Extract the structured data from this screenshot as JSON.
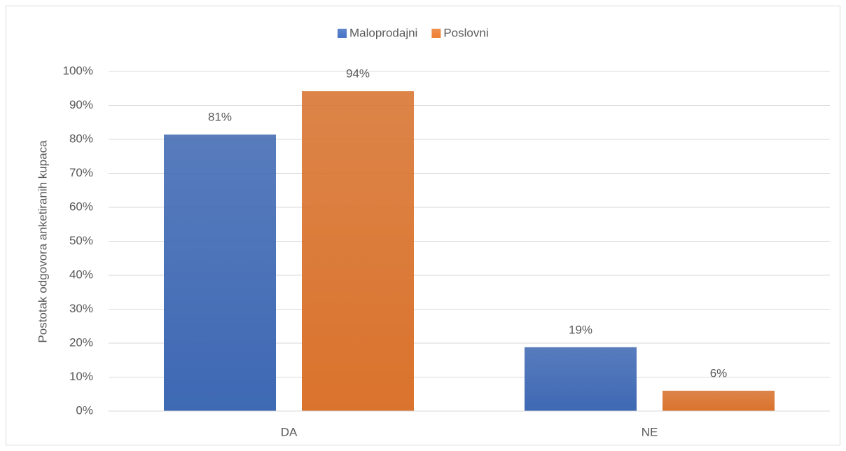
{
  "chart_data": {
    "type": "bar",
    "y_label": "Postotak odgovora anketiranih kupaca",
    "categories": [
      "DA",
      "NE"
    ],
    "series": [
      {
        "name": "Maloprodajni",
        "color": "#4472c4",
        "values": [
          81.4,
          18.8
        ],
        "value_labels": [
          "81%",
          "19%"
        ]
      },
      {
        "name": "Poslovni",
        "color": "#ed7d31",
        "values": [
          94.2,
          6.0
        ],
        "value_labels": [
          "94%",
          "6%"
        ]
      }
    ],
    "ylim": [
      0,
      100
    ],
    "yticks": [
      {
        "value": 0,
        "label": "0%"
      },
      {
        "value": 10,
        "label": "10%"
      },
      {
        "value": 20,
        "label": "20%"
      },
      {
        "value": 30,
        "label": "30%"
      },
      {
        "value": 40,
        "label": "40%"
      },
      {
        "value": 50,
        "label": "50%"
      },
      {
        "value": 60,
        "label": "60%"
      },
      {
        "value": 70,
        "label": "70%"
      },
      {
        "value": 80,
        "label": "80%"
      },
      {
        "value": 90,
        "label": "90%"
      },
      {
        "value": 100,
        "label": "100%"
      }
    ],
    "grid": true,
    "legend": "top"
  }
}
